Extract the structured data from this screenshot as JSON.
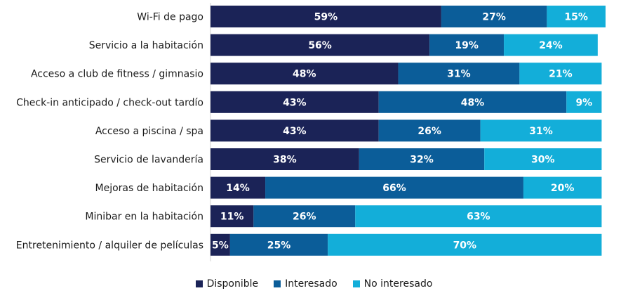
{
  "chart_data": {
    "type": "bar",
    "orientation": "horizontal",
    "stacked": true,
    "categories": [
      "Wi-Fi de pago",
      "Servicio a la habitación",
      "Acceso a club de fitness / gimnasio",
      "Check-in anticipado / check-out tardío",
      "Acceso a piscina / spa",
      "Servicio de lavandería",
      "Mejoras de habitación",
      "Minibar en la habitación",
      "Entretenimiento / alquiler de películas"
    ],
    "series": [
      {
        "name": "Disponible",
        "color": "#1b2357",
        "values": [
          59,
          56,
          48,
          43,
          43,
          38,
          14,
          11,
          5
        ]
      },
      {
        "name": "Interesado",
        "color": "#0b5d99",
        "values": [
          27,
          19,
          31,
          48,
          26,
          32,
          66,
          26,
          25
        ]
      },
      {
        "name": "No interesado",
        "color": "#13aed9",
        "values": [
          15,
          24,
          21,
          9,
          31,
          30,
          20,
          63,
          70
        ]
      }
    ],
    "value_suffix": "%",
    "xlim": [
      0,
      101
    ],
    "legend_position": "bottom",
    "grid": false
  }
}
